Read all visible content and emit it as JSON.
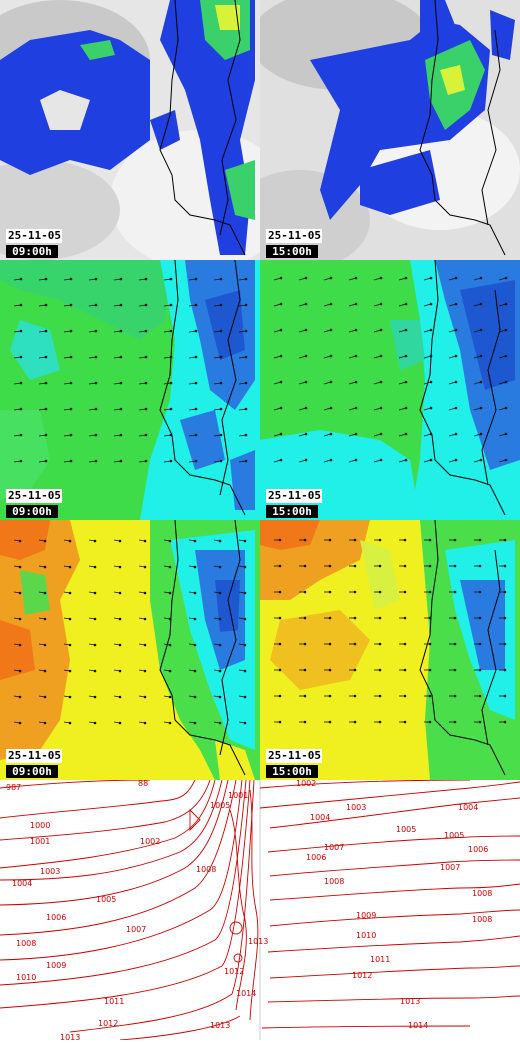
{
  "panels": [
    {
      "id": "cloud-09",
      "date": "25-11-05",
      "time": "09:00h"
    },
    {
      "id": "cloud-15",
      "date": "25-11-05",
      "time": "15:00h"
    },
    {
      "id": "humidity-09",
      "date": "25-11-05",
      "time": "09:00h"
    },
    {
      "id": "humidity-15",
      "date": "25-11-05",
      "time": "15:00h"
    },
    {
      "id": "temp-09",
      "date": "25-11-05",
      "time": "09:00h"
    },
    {
      "id": "temp-15",
      "date": "25-11-05",
      "time": "15:00h"
    }
  ],
  "colors": {
    "cloud_bg": "#d8d8d8",
    "precip_blue": "#1f3fe0",
    "precip_green": "#3ad06a",
    "precip_yellow": "#d8f23a",
    "hum_green": "#3fdc4a",
    "hum_cyan": "#20f0e8",
    "hum_blue": "#2a7be0",
    "temp_orange": "#f08a1a",
    "temp_yellow": "#f0f020",
    "temp_green": "#4ade4a",
    "isobar": "#cc0000",
    "coast": "#000000"
  },
  "isobars": {
    "labels_left": [
      "987",
      "88",
      "1000",
      "1001",
      "1002",
      "1003",
      "1004",
      "1005",
      "1006",
      "1007",
      "1008",
      "1009",
      "1010",
      "1011",
      "1012",
      "1013",
      "1005",
      "1008",
      "1001",
      "1012",
      "1013",
      "1013",
      "1014"
    ],
    "labels_right": [
      "1002",
      "1003",
      "1004",
      "1005",
      "1006",
      "1007",
      "1008",
      "1008",
      "1007",
      "1009",
      "1010",
      "1011",
      "1012",
      "1013",
      "1014",
      "1008",
      "1006",
      "1004",
      "1005"
    ]
  }
}
